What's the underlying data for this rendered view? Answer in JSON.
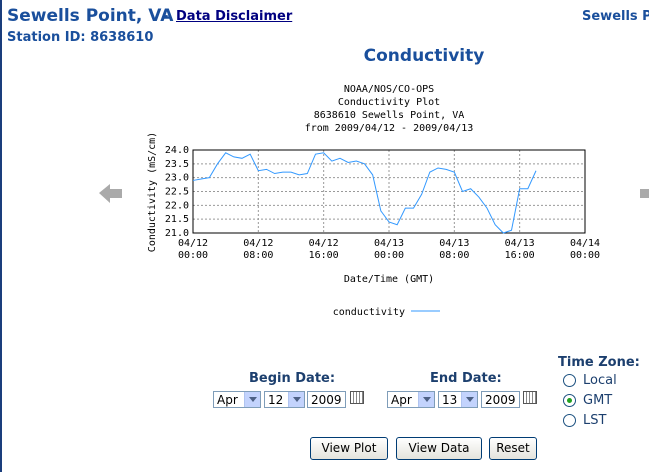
{
  "header": {
    "station_name": "Sewells Point, VA",
    "separator": "-",
    "disclaimer_link": "Data Disclaimer",
    "right_title": "Sewells P",
    "station_id": "Station ID: 8638610"
  },
  "page_heading": "Conductivity",
  "chart_data": {
    "type": "line",
    "title_lines": [
      "NOAA/NOS/CO-OPS",
      "Conductivity Plot",
      "8638610 Sewells Point, VA",
      "from 2009/04/12 - 2009/04/13"
    ],
    "y_label": "Conductivity (mS/cm)",
    "x_label": "Date/Time (GMT)",
    "x": [
      "2009-04-12T00:00",
      "2009-04-12T01:00",
      "2009-04-12T02:00",
      "2009-04-12T03:00",
      "2009-04-12T04:00",
      "2009-04-12T05:00",
      "2009-04-12T06:00",
      "2009-04-12T07:00",
      "2009-04-12T08:00",
      "2009-04-12T09:00",
      "2009-04-12T10:00",
      "2009-04-12T11:00",
      "2009-04-12T12:00",
      "2009-04-12T13:00",
      "2009-04-12T14:00",
      "2009-04-12T15:00",
      "2009-04-12T16:00",
      "2009-04-12T17:00",
      "2009-04-12T18:00",
      "2009-04-12T19:00",
      "2009-04-12T20:00",
      "2009-04-12T21:00",
      "2009-04-12T22:00",
      "2009-04-12T23:00",
      "2009-04-13T00:00",
      "2009-04-13T01:00",
      "2009-04-13T02:00",
      "2009-04-13T03:00",
      "2009-04-13T04:00",
      "2009-04-13T05:00",
      "2009-04-13T06:00",
      "2009-04-13T07:00",
      "2009-04-13T08:00",
      "2009-04-13T09:00",
      "2009-04-13T10:00",
      "2009-04-13T11:00",
      "2009-04-13T12:00",
      "2009-04-13T13:00",
      "2009-04-13T14:00",
      "2009-04-13T15:00",
      "2009-04-13T16:00",
      "2009-04-13T17:00",
      "2009-04-13T18:00"
    ],
    "series": [
      {
        "name": "conductivity",
        "color": "#3399ff",
        "values": [
          22.9,
          22.95,
          23.0,
          23.5,
          23.9,
          23.75,
          23.7,
          23.85,
          23.25,
          23.3,
          23.15,
          23.2,
          23.2,
          23.1,
          23.15,
          23.85,
          23.9,
          23.6,
          23.7,
          23.55,
          23.6,
          23.5,
          23.1,
          21.8,
          21.4,
          21.3,
          21.9,
          21.9,
          22.4,
          23.2,
          23.35,
          23.3,
          23.2,
          22.5,
          22.6,
          22.3,
          21.9,
          21.3,
          21.0,
          21.1,
          22.6,
          22.6,
          23.25
        ]
      }
    ],
    "xlim": [
      "2009-04-12T00:00",
      "2009-04-14T00:00"
    ],
    "xticks": [
      {
        "value": "2009-04-12T00:00",
        "label": "04/12\n00:00"
      },
      {
        "value": "2009-04-12T08:00",
        "label": "04/12\n08:00"
      },
      {
        "value": "2009-04-12T16:00",
        "label": "04/12\n16:00"
      },
      {
        "value": "2009-04-13T00:00",
        "label": "04/13\n00:00"
      },
      {
        "value": "2009-04-13T08:00",
        "label": "04/13\n08:00"
      },
      {
        "value": "2009-04-13T16:00",
        "label": "04/13\n16:00"
      },
      {
        "value": "2009-04-14T00:00",
        "label": "04/14\n00:00"
      }
    ],
    "ylim": [
      21.0,
      24.0
    ],
    "yticks": [
      {
        "value": 21.0,
        "label": "21.0"
      },
      {
        "value": 21.5,
        "label": "21.5"
      },
      {
        "value": 22.0,
        "label": "22.0"
      },
      {
        "value": 22.5,
        "label": "22.5"
      },
      {
        "value": 23.0,
        "label": "23.0"
      },
      {
        "value": 23.5,
        "label": "23.5"
      },
      {
        "value": 24.0,
        "label": "24.0"
      }
    ],
    "grid": true
  },
  "form": {
    "begin_label": "Begin Date:",
    "begin": {
      "month": "Apr",
      "day": "12",
      "year": "2009"
    },
    "end_label": "End Date:",
    "end": {
      "month": "Apr",
      "day": "13",
      "year": "2009"
    },
    "timezone_label": "Time Zone:",
    "timezones": [
      "Local",
      "GMT",
      "LST"
    ],
    "selected_timezone": "GMT"
  },
  "buttons": [
    "View Plot",
    "View Data",
    "Reset"
  ]
}
